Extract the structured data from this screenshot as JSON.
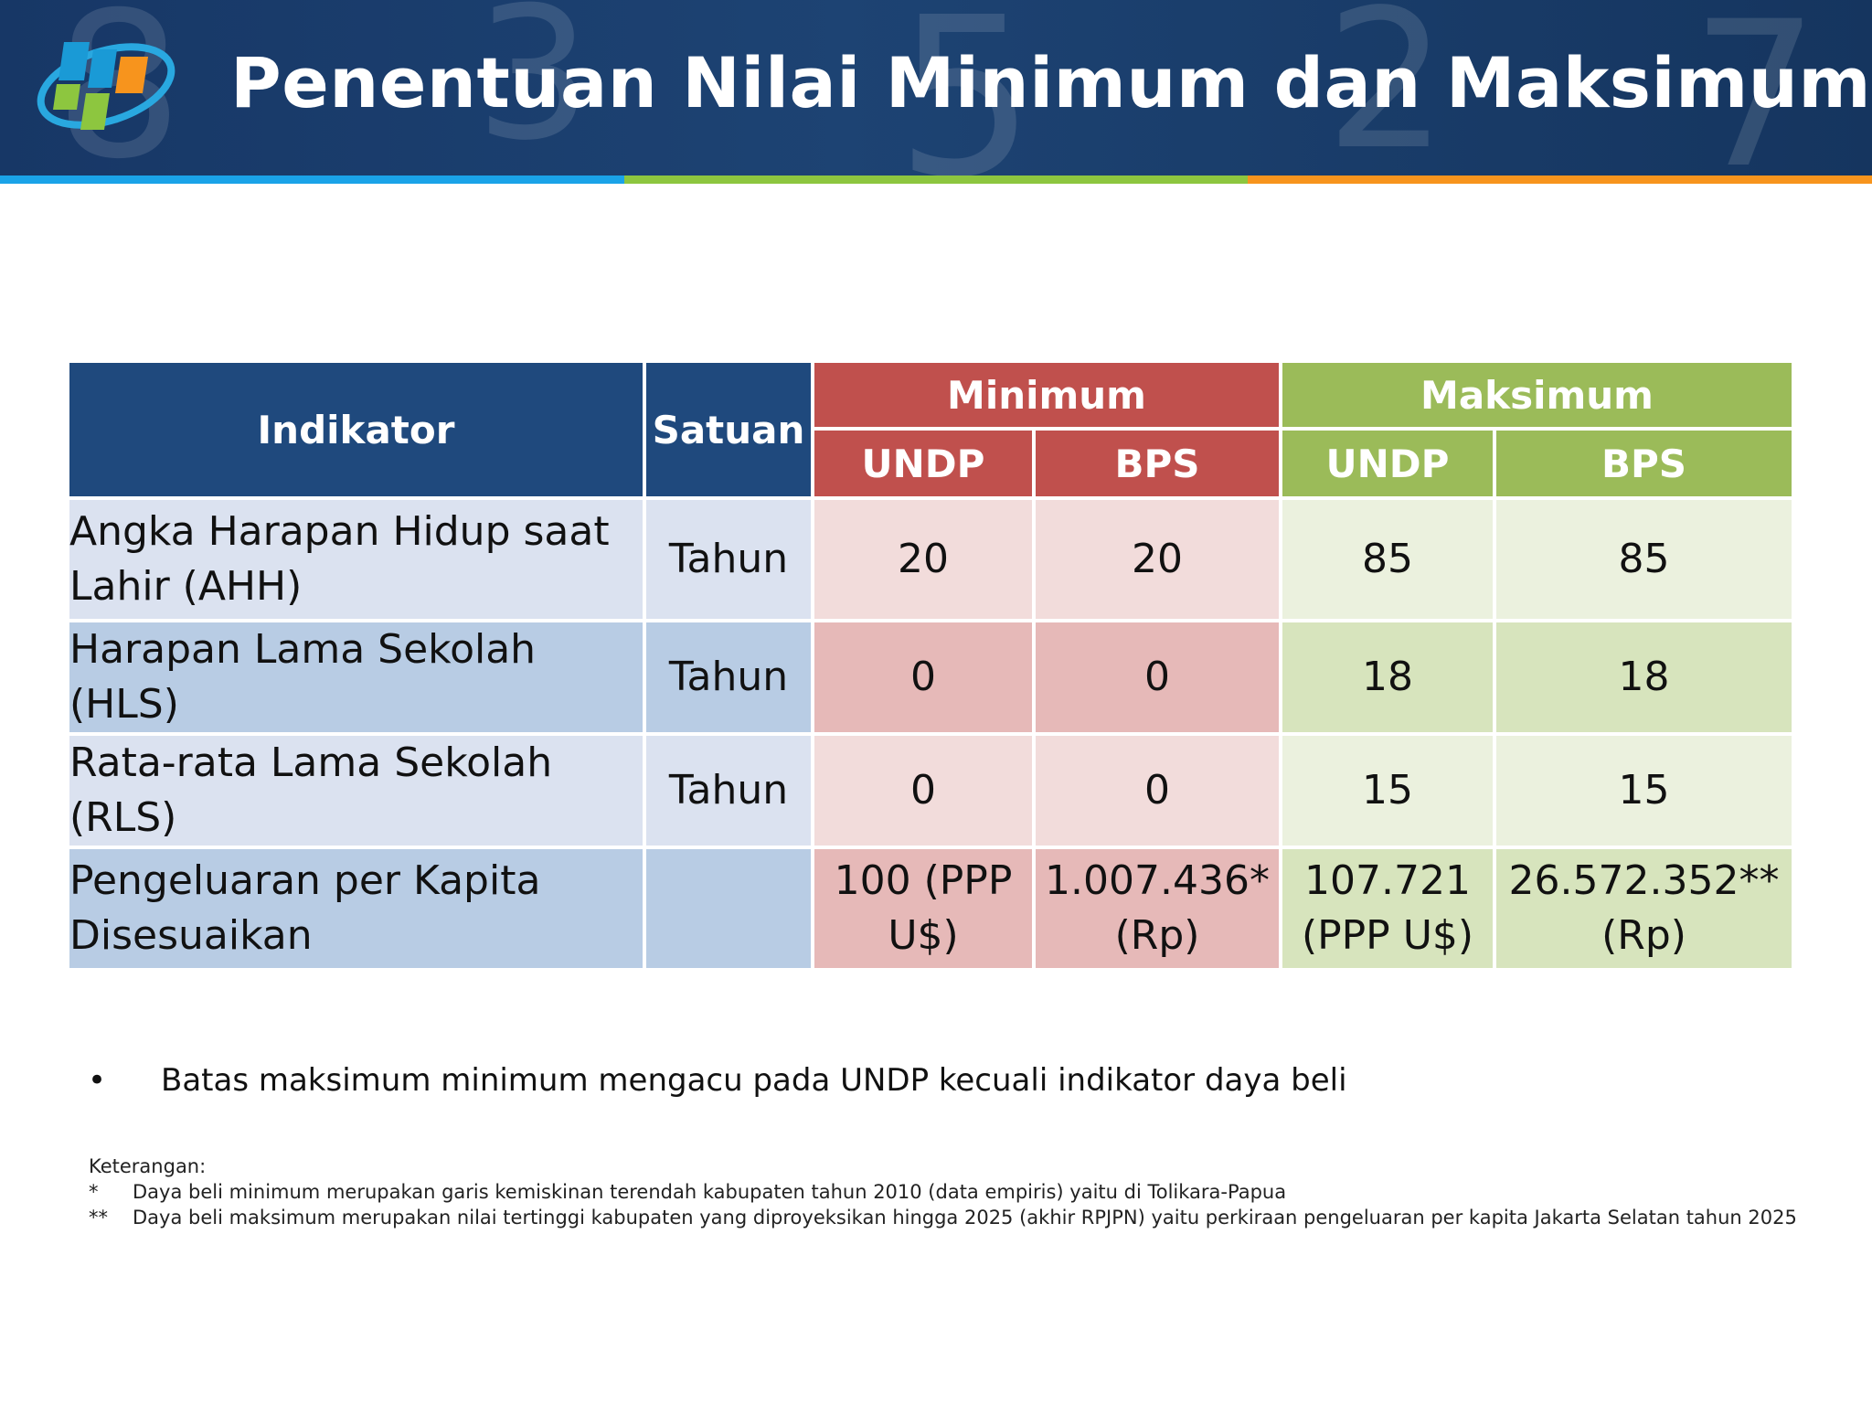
{
  "header": {
    "title": "Penentuan Nilai Minimum dan Maksimum",
    "stripe_colors": [
      "#1aa3e8",
      "#8dc63f",
      "#f7941d"
    ]
  },
  "table": {
    "headers": {
      "indikator": "Indikator",
      "satuan": "Satuan",
      "minimum": "Minimum",
      "maksimum": "Maksimum",
      "min_undp": "UNDP",
      "min_bps": "BPS",
      "max_undp": "UNDP",
      "max_bps": "BPS"
    },
    "rows": [
      {
        "indikator": "Angka Harapan Hidup saat Lahir (AHH)",
        "satuan": "Tahun",
        "min_undp": "20",
        "min_bps": "20",
        "max_undp": "85",
        "max_bps": "85"
      },
      {
        "indikator": "Harapan Lama Sekolah (HLS)",
        "satuan": "Tahun",
        "min_undp": "0",
        "min_bps": "0",
        "max_undp": "18",
        "max_bps": "18"
      },
      {
        "indikator": "Rata-rata Lama Sekolah (RLS)",
        "satuan": "Tahun",
        "min_undp": "0",
        "min_bps": "0",
        "max_undp": "15",
        "max_bps": "15"
      },
      {
        "indikator": "Pengeluaran per Kapita Disesuaikan",
        "satuan": "",
        "min_undp": "100 (PPP U$)",
        "min_bps": "1.007.436* (Rp)",
        "max_undp": "107.721 (PPP U$)",
        "max_bps": "26.572.352** (Rp)"
      }
    ]
  },
  "bullet": {
    "symbol": "•",
    "text": "Batas maksimum minimum mengacu pada UNDP kecuali indikator daya beli"
  },
  "notes": {
    "heading": "Keterangan:",
    "items": [
      {
        "mark": "*",
        "text": "Daya beli minimum merupakan garis kemiskinan terendah kabupaten tahun  2010 (data empiris) yaitu di Tolikara-Papua"
      },
      {
        "mark": "**",
        "text": "Daya beli maksimum merupakan nilai tertinggi kabupaten yang diproyeksikan hingga 2025 (akhir RPJPN) yaitu perkiraan pengeluaran per kapita Jakarta Selatan tahun 2025"
      }
    ]
  }
}
